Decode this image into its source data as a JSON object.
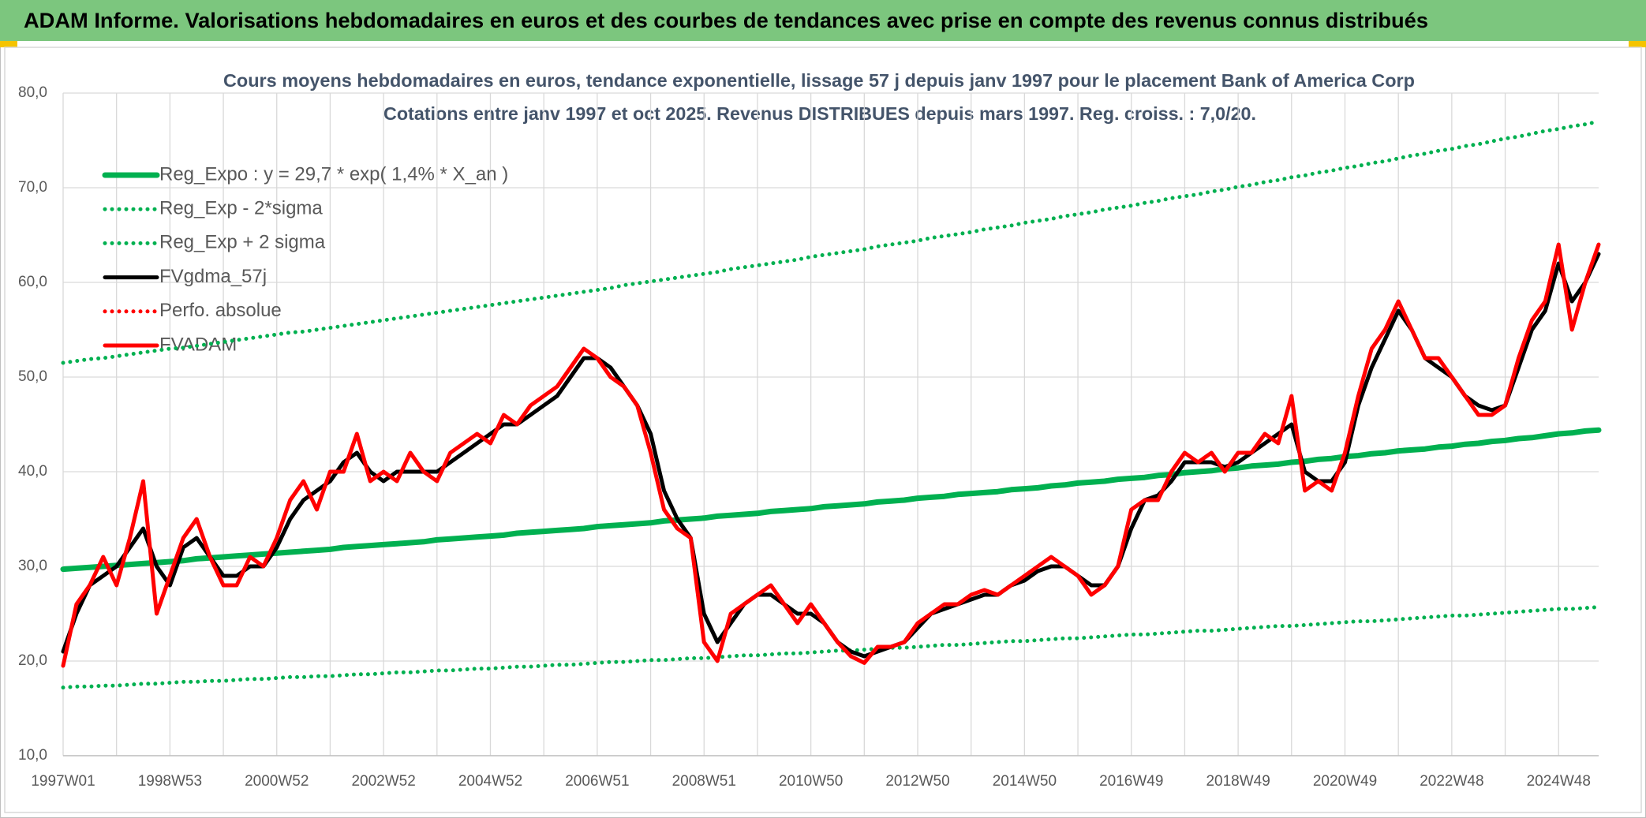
{
  "header": {
    "title": "ADAM Informe. Valorisations hebdomadaires en euros et des courbes de tendances avec prise en compte des revenus connus distribués"
  },
  "chart_data": {
    "type": "line",
    "title": "Cours moyens hebdomadaires en euros, tendance exponentielle, lissage 57 j depuis janv 1997 pour le placement Bank of America Corp",
    "subtitle": "Cotations entre janv 1997 et oct 2025. Revenus DISTRIBUES depuis mars 1997. Reg. croiss. : 7,0/20.",
    "categories": [
      "1997W01",
      null,
      null,
      null,
      null,
      null,
      null,
      null,
      "1998W53",
      null,
      null,
      null,
      null,
      null,
      null,
      null,
      "2000W52",
      null,
      null,
      null,
      null,
      null,
      null,
      null,
      "2002W52",
      null,
      null,
      null,
      null,
      null,
      null,
      null,
      "2004W52",
      null,
      null,
      null,
      null,
      null,
      null,
      null,
      "2006W51",
      null,
      null,
      null,
      null,
      null,
      null,
      null,
      "2008W51",
      null,
      null,
      null,
      null,
      null,
      null,
      null,
      "2010W50",
      null,
      null,
      null,
      null,
      null,
      null,
      null,
      "2012W50",
      null,
      null,
      null,
      null,
      null,
      null,
      null,
      "2014W50",
      null,
      null,
      null,
      null,
      null,
      null,
      null,
      "2016W49",
      null,
      null,
      null,
      null,
      null,
      null,
      null,
      "2018W49",
      null,
      null,
      null,
      null,
      null,
      null,
      null,
      "2020W49",
      null,
      null,
      null,
      null,
      null,
      null,
      null,
      "2022W48",
      null,
      null,
      null,
      null,
      null,
      null,
      null,
      "2024W48",
      null,
      null,
      null
    ],
    "ylim": [
      10,
      80
    ],
    "yticks": [
      {
        "value": 10,
        "label": "10,0"
      },
      {
        "value": 20,
        "label": "20,0"
      },
      {
        "value": 30,
        "label": "30,0"
      },
      {
        "value": 40,
        "label": "40,0"
      },
      {
        "value": 50,
        "label": "50,0"
      },
      {
        "value": 60,
        "label": "60,0"
      },
      {
        "value": 70,
        "label": "70,0"
      },
      {
        "value": 80,
        "label": "80,0"
      }
    ],
    "grid": true,
    "legend": "upper left",
    "series": [
      {
        "name": "Reg_Expo : y = 29,7 * exp( 1,4% *  X_an )",
        "color": "#00b050",
        "style": "solid",
        "values": [
          29.7,
          29.8,
          29.9,
          30.0,
          30.1,
          30.2,
          30.3,
          30.4,
          30.5,
          30.6,
          30.8,
          30.9,
          31.0,
          31.1,
          31.2,
          31.3,
          31.4,
          31.5,
          31.6,
          31.7,
          31.8,
          32.0,
          32.1,
          32.2,
          32.3,
          32.4,
          32.5,
          32.6,
          32.8,
          32.9,
          33.0,
          33.1,
          33.2,
          33.3,
          33.5,
          33.6,
          33.7,
          33.8,
          33.9,
          34.0,
          34.2,
          34.3,
          34.4,
          34.5,
          34.6,
          34.8,
          34.9,
          35.0,
          35.1,
          35.3,
          35.4,
          35.5,
          35.6,
          35.8,
          35.9,
          36.0,
          36.1,
          36.3,
          36.4,
          36.5,
          36.6,
          36.8,
          36.9,
          37.0,
          37.2,
          37.3,
          37.4,
          37.6,
          37.7,
          37.8,
          37.9,
          38.1,
          38.2,
          38.3,
          38.5,
          38.6,
          38.8,
          38.9,
          39.0,
          39.2,
          39.3,
          39.4,
          39.6,
          39.7,
          39.9,
          40.0,
          40.1,
          40.3,
          40.4,
          40.6,
          40.7,
          40.8,
          41.0,
          41.1,
          41.3,
          41.4,
          41.6,
          41.7,
          41.9,
          42.0,
          42.2,
          42.3,
          42.4,
          42.6,
          42.7,
          42.9,
          43.0,
          43.2,
          43.3,
          43.5,
          43.6,
          43.8,
          44.0,
          44.1,
          44.3,
          44.4
        ]
      },
      {
        "name": "Reg_Exp - 2*sigma",
        "color": "#00b050",
        "style": "dotted",
        "values": [
          17.2,
          17.3,
          17.3,
          17.4,
          17.4,
          17.5,
          17.6,
          17.6,
          17.7,
          17.8,
          17.8,
          17.9,
          17.9,
          18.0,
          18.1,
          18.1,
          18.2,
          18.3,
          18.3,
          18.4,
          18.4,
          18.5,
          18.6,
          18.6,
          18.7,
          18.8,
          18.8,
          18.9,
          19.0,
          19.0,
          19.1,
          19.2,
          19.2,
          19.3,
          19.4,
          19.4,
          19.5,
          19.6,
          19.6,
          19.7,
          19.8,
          19.9,
          19.9,
          20.0,
          20.1,
          20.1,
          20.2,
          20.3,
          20.3,
          20.4,
          20.5,
          20.6,
          20.6,
          20.7,
          20.8,
          20.8,
          20.9,
          21.0,
          21.1,
          21.1,
          21.2,
          21.3,
          21.4,
          21.4,
          21.5,
          21.6,
          21.7,
          21.7,
          21.8,
          21.9,
          22.0,
          22.1,
          22.1,
          22.2,
          22.3,
          22.4,
          22.4,
          22.5,
          22.6,
          22.7,
          22.8,
          22.8,
          22.9,
          23.0,
          23.1,
          23.2,
          23.2,
          23.3,
          23.4,
          23.5,
          23.6,
          23.7,
          23.7,
          23.8,
          23.9,
          24.0,
          24.1,
          24.2,
          24.2,
          24.3,
          24.4,
          24.5,
          24.6,
          24.7,
          24.8,
          24.8,
          24.9,
          25.0,
          25.1,
          25.2,
          25.3,
          25.4,
          25.5,
          25.5,
          25.6,
          25.7
        ]
      },
      {
        "name": "Reg_Exp + 2 sigma",
        "color": "#00b050",
        "style": "dotted",
        "values": [
          51.5,
          51.7,
          51.9,
          52.0,
          52.2,
          52.4,
          52.6,
          52.8,
          53.0,
          53.1,
          53.3,
          53.5,
          53.7,
          53.9,
          54.1,
          54.3,
          54.5,
          54.7,
          54.8,
          55.0,
          55.2,
          55.4,
          55.6,
          55.8,
          56.0,
          56.2,
          56.4,
          56.6,
          56.8,
          57.0,
          57.2,
          57.4,
          57.6,
          57.8,
          58.0,
          58.2,
          58.4,
          58.6,
          58.8,
          59.0,
          59.2,
          59.4,
          59.7,
          59.9,
          60.1,
          60.3,
          60.5,
          60.7,
          60.9,
          61.1,
          61.4,
          61.6,
          61.8,
          62.0,
          62.2,
          62.4,
          62.7,
          62.9,
          63.1,
          63.3,
          63.5,
          63.8,
          64.0,
          64.2,
          64.4,
          64.7,
          64.9,
          65.1,
          65.3,
          65.6,
          65.8,
          66.0,
          66.3,
          66.5,
          66.7,
          67.0,
          67.2,
          67.4,
          67.7,
          67.9,
          68.1,
          68.4,
          68.6,
          68.9,
          69.1,
          69.3,
          69.6,
          69.8,
          70.1,
          70.3,
          70.6,
          70.8,
          71.1,
          71.3,
          71.6,
          71.8,
          72.1,
          72.3,
          72.6,
          72.8,
          73.1,
          73.4,
          73.6,
          73.9,
          74.1,
          74.4,
          74.6,
          74.9,
          75.2,
          75.4,
          75.7,
          76.0,
          76.2,
          76.5,
          76.7,
          77.0
        ]
      },
      {
        "name": "FVgdma_57j",
        "color": "#000000",
        "style": "solid",
        "values": [
          21,
          25,
          28,
          29,
          30,
          32,
          34,
          30,
          28,
          32,
          33,
          31,
          29,
          29,
          30,
          30,
          32,
          35,
          37,
          38,
          39,
          41,
          42,
          40,
          39,
          40,
          40,
          40,
          40,
          41,
          42,
          43,
          44,
          45,
          45,
          46,
          47,
          48,
          50,
          52,
          52,
          51,
          49,
          47,
          44,
          38,
          35,
          33,
          25,
          22,
          24,
          26,
          27,
          27,
          26,
          25,
          25,
          24,
          22,
          21,
          20.5,
          21,
          21.5,
          22,
          23.5,
          25,
          25.5,
          26,
          26.5,
          27,
          27,
          28,
          28.5,
          29.5,
          30,
          30,
          29,
          28,
          28,
          30,
          34,
          37,
          37.5,
          39,
          41,
          41,
          41,
          40.5,
          41,
          42,
          43,
          44,
          45,
          40,
          39,
          39,
          41,
          47,
          51,
          54,
          57,
          55,
          52,
          51,
          50,
          48,
          47,
          46.5,
          47,
          51,
          55,
          57,
          62,
          58,
          60,
          63
        ]
      },
      {
        "name": "Perfo. absolue",
        "color": "#ff0000",
        "style": "dotted"
      },
      {
        "name": "FVADAM",
        "color": "#ff0000",
        "style": "solid",
        "values": [
          19.5,
          26,
          28,
          31,
          28,
          33,
          39,
          25,
          29,
          33,
          35,
          31,
          28,
          28,
          31,
          30,
          33,
          37,
          39,
          36,
          40,
          40,
          44,
          39,
          40,
          39,
          42,
          40,
          39,
          42,
          43,
          44,
          43,
          46,
          45,
          47,
          48,
          49,
          51,
          53,
          52,
          50,
          49,
          47,
          42,
          36,
          34,
          33,
          22,
          20,
          25,
          26,
          27,
          28,
          26,
          24,
          26,
          24,
          22,
          20.5,
          19.8,
          21.5,
          21.5,
          22,
          24,
          25,
          26,
          26,
          27,
          27.5,
          27,
          28,
          29,
          30,
          31,
          30,
          29,
          27,
          28,
          30,
          36,
          37,
          37,
          40,
          42,
          41,
          42,
          40,
          42,
          42,
          44,
          43,
          48,
          38,
          39,
          38,
          42,
          48,
          53,
          55,
          58,
          55,
          52,
          52,
          50,
          48,
          46,
          46,
          47,
          52,
          56,
          58,
          64,
          55,
          60,
          64
        ]
      }
    ]
  }
}
